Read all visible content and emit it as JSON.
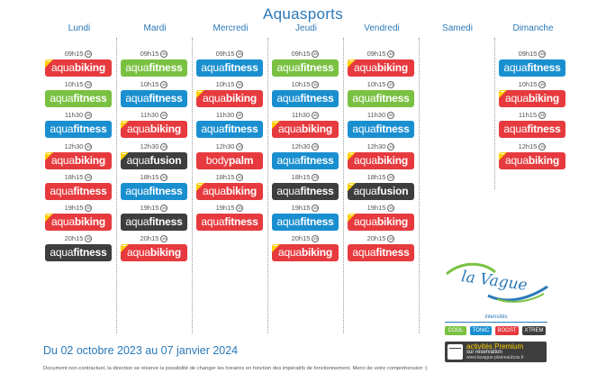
{
  "title": "Aquasports",
  "days": [
    {
      "name": "Lundi",
      "slots": [
        {
          "time": "09h15",
          "a": "aqua",
          "b": "biking",
          "color": "#e63a3e",
          "premium": true
        },
        {
          "time": "10h15",
          "a": "aqua",
          "b": "fitness",
          "color": "#7ac142",
          "premium": false
        },
        {
          "time": "11h30",
          "a": "aqua",
          "b": "fitness",
          "color": "#1a8fd0",
          "premium": false
        },
        {
          "time": "12h30",
          "a": "aqua",
          "b": "biking",
          "color": "#e63a3e",
          "premium": true
        },
        {
          "time": "18h15",
          "a": "aqua",
          "b": "fitness",
          "color": "#e63a3e",
          "premium": false
        },
        {
          "time": "19h15",
          "a": "aqua",
          "b": "biking",
          "color": "#e63a3e",
          "premium": true
        },
        {
          "time": "20h15",
          "a": "aqua",
          "b": "fitness",
          "color": "#3e3e3e",
          "premium": false
        }
      ]
    },
    {
      "name": "Mardi",
      "slots": [
        {
          "time": "09h15",
          "a": "aqua",
          "b": "fitness",
          "color": "#7ac142",
          "premium": false
        },
        {
          "time": "10h15",
          "a": "aqua",
          "b": "fitness",
          "color": "#1a8fd0",
          "premium": false
        },
        {
          "time": "11h30",
          "a": "aqua",
          "b": "biking",
          "color": "#e63a3e",
          "premium": true
        },
        {
          "time": "12h30",
          "a": "aqua",
          "b": "fusion",
          "color": "#3e3e3e",
          "premium": true
        },
        {
          "time": "18h15",
          "a": "aqua",
          "b": "fitness",
          "color": "#1a8fd0",
          "premium": false
        },
        {
          "time": "19h15",
          "a": "aqua",
          "b": "fitness",
          "color": "#3e3e3e",
          "premium": false
        },
        {
          "time": "20h15",
          "a": "aqua",
          "b": "biking",
          "color": "#e63a3e",
          "premium": true
        }
      ]
    },
    {
      "name": "Mercredi",
      "slots": [
        {
          "time": "09h15",
          "a": "aqua",
          "b": "fitness",
          "color": "#1a8fd0",
          "premium": false
        },
        {
          "time": "10h15",
          "a": "aqua",
          "b": "biking",
          "color": "#e63a3e",
          "premium": true
        },
        {
          "time": "11h30",
          "a": "aqua",
          "b": "fitness",
          "color": "#1a8fd0",
          "premium": false
        },
        {
          "time": "12h30",
          "a": "body",
          "b": "palm",
          "color": "#e63a3e",
          "premium": false
        },
        {
          "time": "18h15",
          "a": "aqua",
          "b": "biking",
          "color": "#e63a3e",
          "premium": true
        },
        {
          "time": "19h15",
          "a": "aqua",
          "b": "fitness",
          "color": "#e63a3e",
          "premium": false
        }
      ]
    },
    {
      "name": "Jeudi",
      "slots": [
        {
          "time": "09h15",
          "a": "aqua",
          "b": "fitness",
          "color": "#7ac142",
          "premium": false
        },
        {
          "time": "10h15",
          "a": "aqua",
          "b": "fitness",
          "color": "#1a8fd0",
          "premium": false
        },
        {
          "time": "11h30",
          "a": "aqua",
          "b": "biking",
          "color": "#e63a3e",
          "premium": true
        },
        {
          "time": "12h30",
          "a": "aqua",
          "b": "fitness",
          "color": "#1a8fd0",
          "premium": false
        },
        {
          "time": "18h15",
          "a": "aqua",
          "b": "fitness",
          "color": "#3e3e3e",
          "premium": false
        },
        {
          "time": "19h15",
          "a": "aqua",
          "b": "fitness",
          "color": "#1a8fd0",
          "premium": false
        },
        {
          "time": "20h15",
          "a": "aqua",
          "b": "biking",
          "color": "#e63a3e",
          "premium": true
        }
      ]
    },
    {
      "name": "Vendredi",
      "slots": [
        {
          "time": "09h15",
          "a": "aqua",
          "b": "biking",
          "color": "#e63a3e",
          "premium": true
        },
        {
          "time": "10h15",
          "a": "aqua",
          "b": "fitness",
          "color": "#7ac142",
          "premium": false
        },
        {
          "time": "11h30",
          "a": "aqua",
          "b": "fitness",
          "color": "#1a8fd0",
          "premium": false
        },
        {
          "time": "12h30",
          "a": "aqua",
          "b": "biking",
          "color": "#e63a3e",
          "premium": true
        },
        {
          "time": "18h15",
          "a": "aqua",
          "b": "fusion",
          "color": "#3e3e3e",
          "premium": true
        },
        {
          "time": "19h15",
          "a": "aqua",
          "b": "biking",
          "color": "#e63a3e",
          "premium": true
        },
        {
          "time": "20h15",
          "a": "aqua",
          "b": "fitness",
          "color": "#e63a3e",
          "premium": false
        }
      ]
    },
    {
      "name": "Samedi",
      "slots": []
    },
    {
      "name": "Dimanche",
      "slots": [
        {
          "time": "09h15",
          "a": "aqua",
          "b": "fitness",
          "color": "#1a8fd0",
          "premium": false
        },
        {
          "time": "10h15",
          "a": "aqua",
          "b": "biking",
          "color": "#e63a3e",
          "premium": true
        },
        {
          "time": "11h15",
          "a": "aqua",
          "b": "fitness",
          "color": "#e63a3e",
          "premium": false
        },
        {
          "time": "12h15",
          "a": "aqua",
          "b": "biking",
          "color": "#e63a3e",
          "premium": true
        }
      ]
    }
  ],
  "slot_icon": "45",
  "logo": {
    "text": "la Vague",
    "icon": "wave-logo-icon"
  },
  "intensity": {
    "label": "intensités",
    "levels": [
      {
        "label": "COOL",
        "color": "#7ac142"
      },
      {
        "label": "TONIC",
        "color": "#1a8fd0"
      },
      {
        "label": "BOOST",
        "color": "#e63a3e"
      },
      {
        "label": "XTREM",
        "color": "#3e3e3e"
      }
    ]
  },
  "premium": {
    "line1": "activités Premium",
    "line2": "sur réservation",
    "line3": "www.lavague-plaineaubois.fr"
  },
  "dates": "Du 02 octobre 2023 au 07 janvier 2024",
  "footer": "Document non-contractuel, la direction se réserve la possibilité de changer les horaires en fonction des impératifs de fonctionnement. Merci de votre compréhension :)"
}
